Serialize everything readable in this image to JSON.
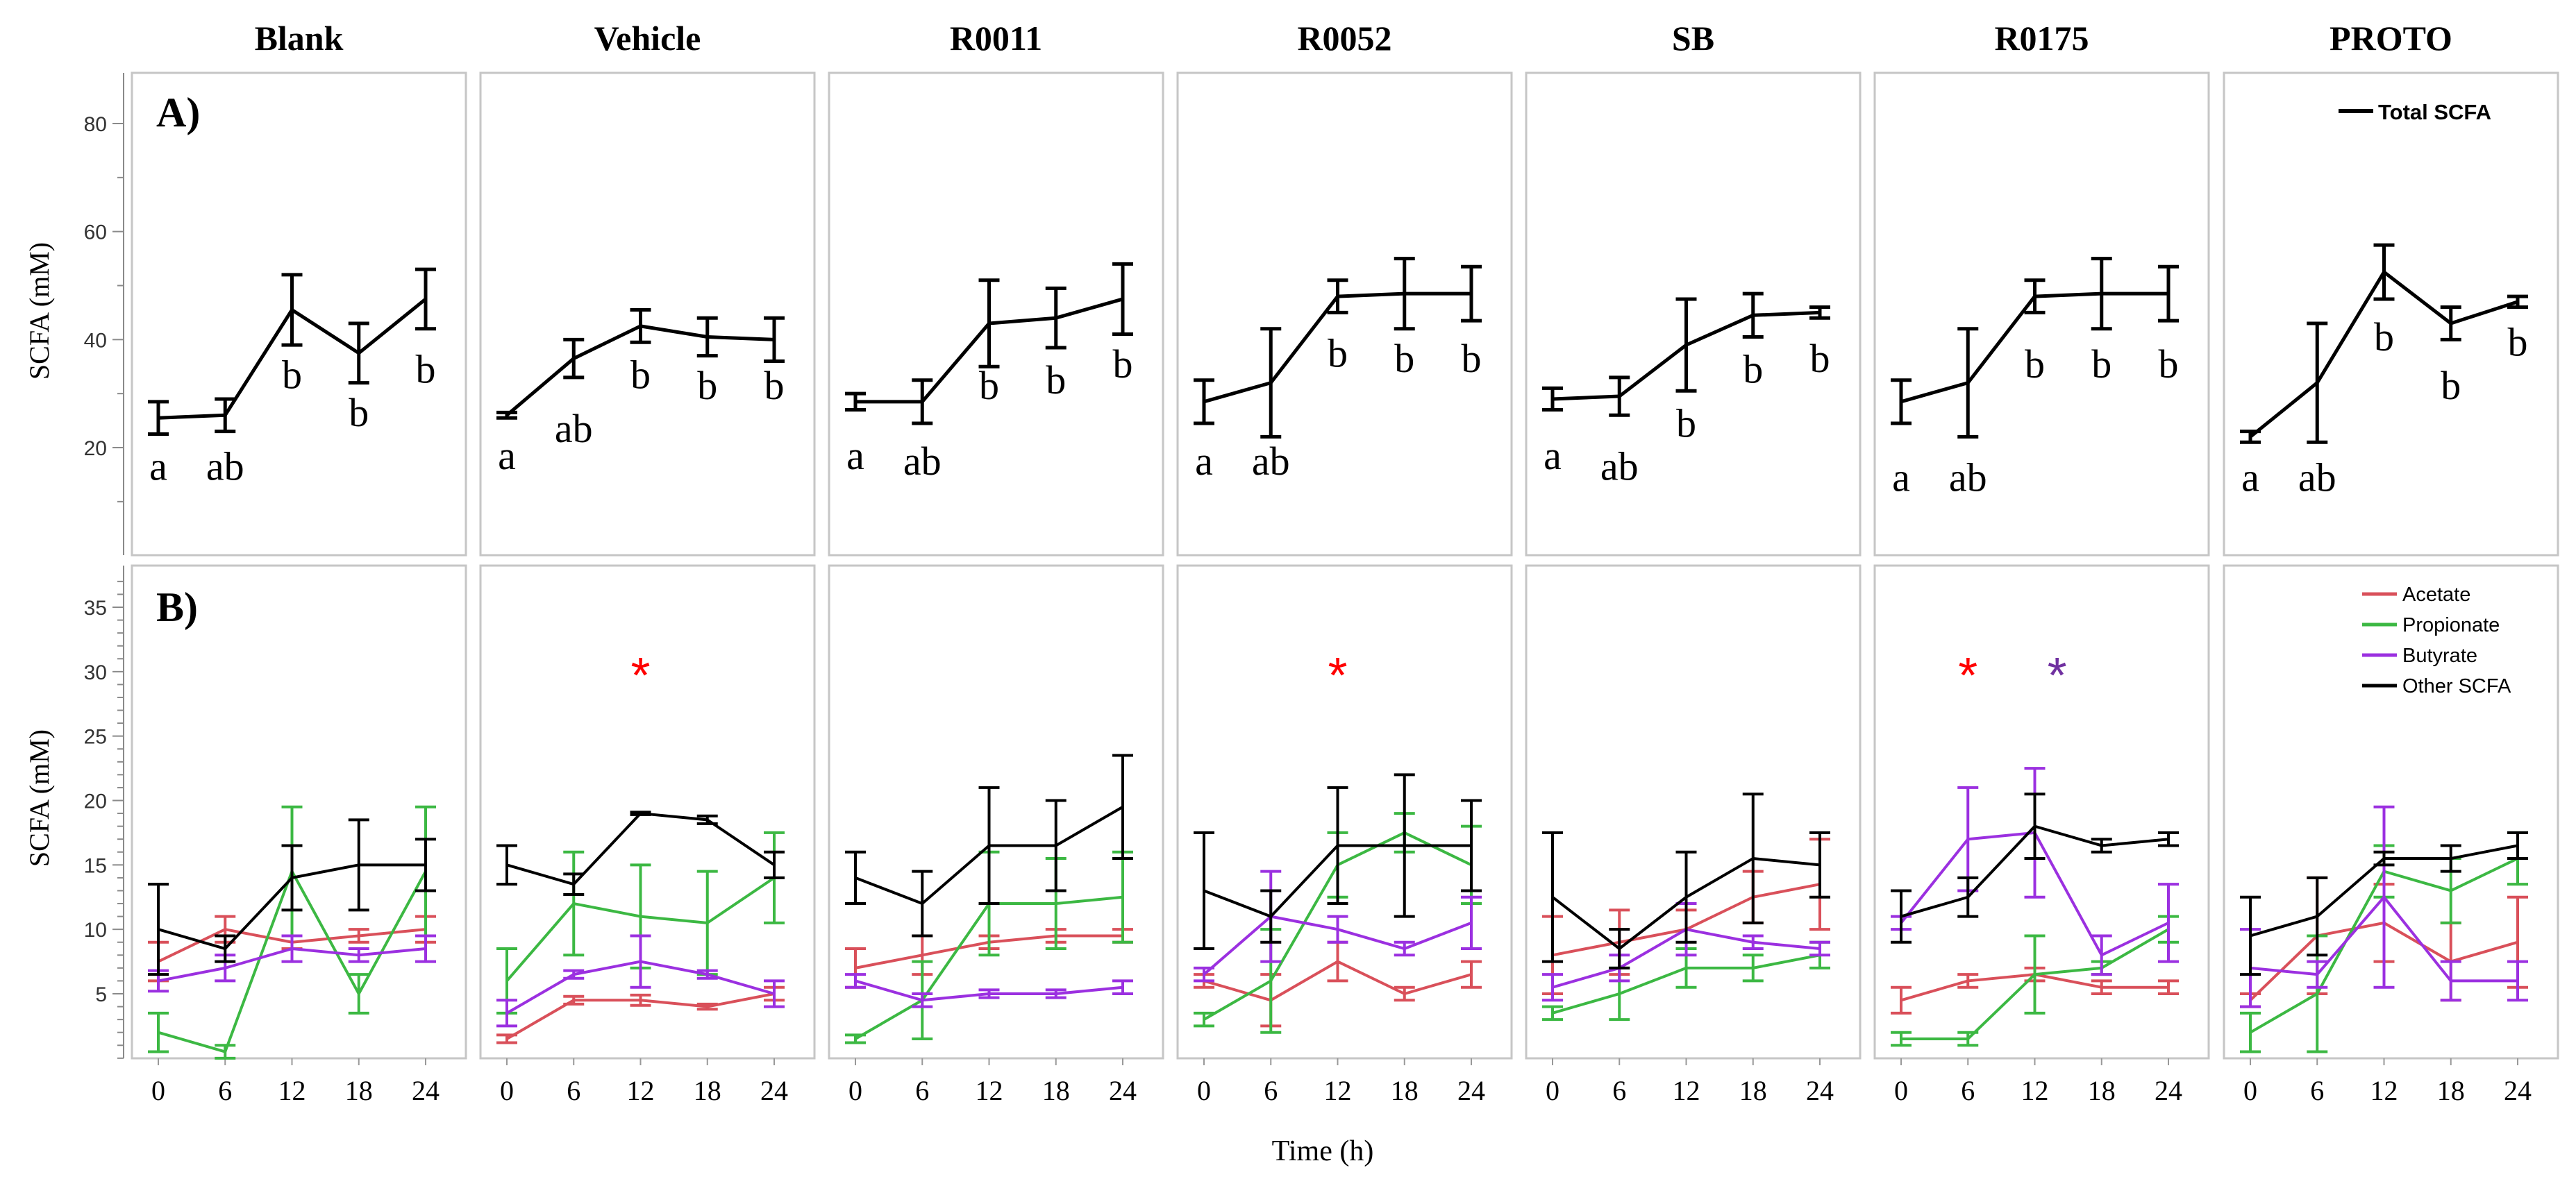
{
  "figure": {
    "xlabel": "Time (h)",
    "x_ticks": [
      0,
      6,
      12,
      18,
      24
    ],
    "treatments": [
      "Blank",
      "Vehicle",
      "R0011",
      "R0052",
      "SB",
      "R0175",
      "PROTO"
    ]
  },
  "colors": {
    "Acetate": "#d9505a",
    "Propionate": "#3cb843",
    "Butyrate": "#9b30e0",
    "Other SCFA": "#000000",
    "Total SCFA": "#000000",
    "star_red": "#ff0000",
    "star_purple": "#7030a0"
  },
  "chart_data": [
    {
      "type": "line",
      "panel": "A)",
      "ylabel": "SCFA (mM)",
      "ylim": [
        0,
        90
      ],
      "yticks": [
        20,
        40,
        60,
        80
      ],
      "legend": [
        "Total SCFA"
      ],
      "legend_position": "top-right of PROTO panel",
      "groups": [
        {
          "treatment": "Blank",
          "x": [
            0,
            6,
            12,
            18,
            24
          ],
          "y": [
            25.5,
            26,
            45.5,
            37.5,
            47.5
          ],
          "err": [
            3,
            3,
            6.5,
            5.5,
            5.5
          ],
          "letters": [
            "a",
            "ab",
            "b",
            "b",
            "b"
          ],
          "letter_y": [
            14,
            14,
            31,
            24,
            32
          ]
        },
        {
          "treatment": "Vehicle",
          "x": [
            0,
            6,
            12,
            18,
            24
          ],
          "y": [
            26,
            36.5,
            42.5,
            40.5,
            40
          ],
          "err": [
            0.5,
            3.5,
            3,
            3.5,
            4
          ],
          "letters": [
            "a",
            "ab",
            "b",
            "b",
            "b"
          ],
          "letter_y": [
            16,
            21,
            31,
            29,
            29
          ]
        },
        {
          "treatment": "R0011",
          "x": [
            0,
            6,
            12,
            18,
            24
          ],
          "y": [
            28.5,
            28.5,
            43,
            44,
            47.5
          ],
          "err": [
            1.5,
            4,
            8,
            5.5,
            6.5
          ],
          "letters": [
            "a",
            "ab",
            "b",
            "b",
            "b"
          ],
          "letter_y": [
            16,
            15,
            29,
            30,
            33
          ]
        },
        {
          "treatment": "R0052",
          "x": [
            0,
            6,
            12,
            18,
            24
          ],
          "y": [
            28.5,
            32,
            48,
            48.5,
            48.5
          ],
          "err": [
            4,
            10,
            3,
            6.5,
            5
          ],
          "letters": [
            "a",
            "ab",
            "b",
            "b",
            "b"
          ],
          "letter_y": [
            15,
            15,
            35,
            34,
            34
          ]
        },
        {
          "treatment": "SB",
          "x": [
            0,
            6,
            12,
            18,
            24
          ],
          "y": [
            29,
            29.5,
            39,
            44.5,
            45
          ],
          "err": [
            2,
            3.5,
            8.5,
            4,
            1
          ],
          "letters": [
            "a",
            "ab",
            "b",
            "b",
            "b"
          ],
          "letter_y": [
            16,
            14,
            22,
            32,
            34
          ]
        },
        {
          "treatment": "R0175",
          "x": [
            0,
            6,
            12,
            18,
            24
          ],
          "y": [
            28.5,
            32,
            48,
            48.5,
            48.5
          ],
          "err": [
            4,
            10,
            3,
            6.5,
            5
          ],
          "letters": [
            "a",
            "ab",
            "b",
            "b",
            "b"
          ],
          "letter_y": [
            12,
            12,
            33,
            33,
            33
          ]
        },
        {
          "treatment": "PROTO",
          "x": [
            0,
            6,
            12,
            18,
            24
          ],
          "y": [
            22,
            32,
            52.5,
            43,
            47
          ],
          "err": [
            1,
            11,
            5,
            3,
            1
          ],
          "letters": [
            "a",
            "ab",
            "b",
            "b",
            "b"
          ],
          "letter_y": [
            12,
            12,
            38,
            29,
            37
          ]
        }
      ]
    },
    {
      "type": "line",
      "panel": "B)",
      "ylabel": "SCFA (mM)",
      "ylim": [
        -1,
        38
      ],
      "yticks": [
        5,
        10,
        15,
        20,
        25,
        30,
        35
      ],
      "legend": [
        "Acetate",
        "Propionate",
        "Butyrate",
        "Other SCFA"
      ],
      "legend_position": "top-right of PROTO panel",
      "significance": [
        {
          "treatment": "Vehicle",
          "label": "*",
          "color": "red",
          "x": 12,
          "y": 30
        },
        {
          "treatment": "R0052",
          "label": "*",
          "color": "red",
          "x": 12,
          "y": 30
        },
        {
          "treatment": "R0175",
          "label": "*",
          "color": "red",
          "x": 6,
          "y": 30
        },
        {
          "treatment": "R0175",
          "label": "*",
          "color": "purple",
          "x": 14,
          "y": 30
        }
      ],
      "groups": [
        {
          "treatment": "Blank",
          "series": [
            {
              "name": "Acetate",
              "y": [
                7.5,
                10,
                9,
                9.5,
                10
              ],
              "err": [
                1.5,
                1,
                0.5,
                0.5,
                1
              ]
            },
            {
              "name": "Propionate",
              "y": [
                2,
                0.5,
                14.5,
                5,
                14.5
              ],
              "err": [
                1.5,
                0.5,
                5,
                1.5,
                5
              ]
            },
            {
              "name": "Butyrate",
              "y": [
                6,
                7,
                8.5,
                8,
                8.5
              ],
              "err": [
                0.8,
                1,
                1,
                0.5,
                1
              ]
            },
            {
              "name": "Other SCFA",
              "y": [
                10,
                8.5,
                14,
                15,
                15
              ],
              "err": [
                3.5,
                1,
                2.5,
                3.5,
                2
              ]
            }
          ]
        },
        {
          "treatment": "Vehicle",
          "series": [
            {
              "name": "Acetate",
              "y": [
                1.5,
                4.5,
                4.5,
                4,
                5
              ],
              "err": [
                0.3,
                0.3,
                0.4,
                0.2,
                0.5
              ]
            },
            {
              "name": "Propionate",
              "y": [
                6,
                12,
                11,
                10.5,
                14
              ],
              "err": [
                2.5,
                4,
                4,
                4,
                3.5
              ]
            },
            {
              "name": "Butyrate",
              "y": [
                3.5,
                6.5,
                7.5,
                6.5,
                5
              ],
              "err": [
                1,
                0.3,
                2,
                0.3,
                1
              ]
            },
            {
              "name": "Other SCFA",
              "y": [
                15,
                13.5,
                19,
                18.5,
                15
              ],
              "err": [
                1.5,
                0.8,
                0.1,
                0.3,
                1
              ]
            }
          ]
        },
        {
          "treatment": "R0011",
          "series": [
            {
              "name": "Acetate",
              "y": [
                7,
                8,
                9,
                9.5,
                9.5
              ],
              "err": [
                1.5,
                1.5,
                0.5,
                0.5,
                0.5
              ]
            },
            {
              "name": "Propionate",
              "y": [
                1.5,
                4.5,
                12,
                12,
                12.5
              ],
              "err": [
                0.3,
                3,
                4,
                3.5,
                3.5
              ]
            },
            {
              "name": "Butyrate",
              "y": [
                6,
                4.5,
                5,
                5,
                5.5
              ],
              "err": [
                0.5,
                0.5,
                0.3,
                0.3,
                0.5
              ]
            },
            {
              "name": "Other SCFA",
              "y": [
                14,
                12,
                16.5,
                16.5,
                19.5
              ],
              "err": [
                2,
                2.5,
                4.5,
                3.5,
                4
              ]
            }
          ]
        },
        {
          "treatment": "R0052",
          "series": [
            {
              "name": "Acetate",
              "y": [
                6,
                4.5,
                7.5,
                5,
                6.5
              ],
              "err": [
                0.5,
                2,
                1.5,
                0.5,
                1
              ]
            },
            {
              "name": "Propionate",
              "y": [
                3,
                6,
                15,
                17.5,
                15
              ],
              "err": [
                0.5,
                4,
                2.5,
                1.5,
                3
              ]
            },
            {
              "name": "Butyrate",
              "y": [
                6.5,
                11,
                10,
                8.5,
                10.5
              ],
              "err": [
                0.5,
                3.5,
                1,
                0.5,
                2
              ]
            },
            {
              "name": "Other SCFA",
              "y": [
                13,
                11,
                16.5,
                16.5,
                16.5
              ],
              "err": [
                4.5,
                2,
                4.5,
                5.5,
                3.5
              ]
            }
          ]
        },
        {
          "treatment": "SB",
          "series": [
            {
              "name": "Acetate",
              "y": [
                8,
                9,
                10,
                12.5,
                13.5
              ],
              "err": [
                3,
                2.5,
                1.5,
                2,
                3.5
              ]
            },
            {
              "name": "Propionate",
              "y": [
                3.5,
                5,
                7,
                7,
                8
              ],
              "err": [
                0.5,
                2,
                1.5,
                1,
                1
              ]
            },
            {
              "name": "Butyrate",
              "y": [
                5.5,
                7,
                10,
                9,
                8.5
              ],
              "err": [
                1,
                1,
                2,
                0.5,
                0.5
              ]
            },
            {
              "name": "Other SCFA",
              "y": [
                12.5,
                8.5,
                12.5,
                15.5,
                15
              ],
              "err": [
                5,
                1.5,
                3.5,
                5,
                2.5
              ]
            }
          ]
        },
        {
          "treatment": "R0175",
          "series": [
            {
              "name": "Acetate",
              "y": [
                4.5,
                6,
                6.5,
                5.5,
                5.5
              ],
              "err": [
                1,
                0.5,
                0.5,
                0.5,
                0.5
              ]
            },
            {
              "name": "Propionate",
              "y": [
                1.5,
                1.5,
                6.5,
                7,
                10
              ],
              "err": [
                0.5,
                0.5,
                3,
                0.5,
                1
              ]
            },
            {
              "name": "Butyrate",
              "y": [
                10.5,
                17,
                17.5,
                8,
                10.5
              ],
              "err": [
                0.5,
                4,
                5,
                1.5,
                3
              ]
            },
            {
              "name": "Other SCFA",
              "y": [
                11,
                12.5,
                18,
                16.5,
                17
              ],
              "err": [
                2,
                1.5,
                2.5,
                0.5,
                0.5
              ]
            }
          ]
        },
        {
          "treatment": "PROTO",
          "series": [
            {
              "name": "Acetate",
              "y": [
                4.5,
                9.5,
                10.5,
                7.5,
                9
              ],
              "err": [
                0.5,
                4.5,
                3,
                3,
                3.5
              ]
            },
            {
              "name": "Propionate",
              "y": [
                2,
                5,
                14.5,
                13,
                15.5
              ],
              "err": [
                1.5,
                4.5,
                2,
                2.5,
                2
              ]
            },
            {
              "name": "Butyrate",
              "y": [
                7,
                6.5,
                12.5,
                6,
                6
              ],
              "err": [
                3,
                1,
                7,
                1.5,
                1.5
              ]
            },
            {
              "name": "Other SCFA",
              "y": [
                9.5,
                11,
                15.5,
                15.5,
                16.5
              ],
              "err": [
                3,
                3,
                0.5,
                1,
                1
              ]
            }
          ]
        }
      ]
    }
  ]
}
